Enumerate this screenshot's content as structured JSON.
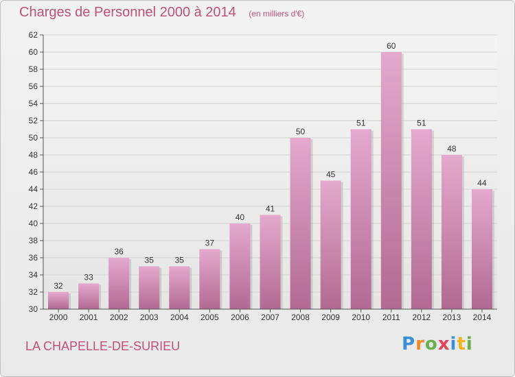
{
  "header": {
    "title": "Charges de Personnel 2000 à 2014",
    "subtitle": "(en milliers d'€)"
  },
  "footer": {
    "commune": "LA CHAPELLE-DE-SURIEU",
    "logo": "Proxiti"
  },
  "colors": {
    "bar_top": "#e4a9cc",
    "bar_bottom": "#b26a91",
    "text_accent": "#c0507a",
    "grid": "#d4d4d4"
  },
  "chart_data": {
    "type": "bar",
    "title": "Charges de Personnel 2000 à 2014",
    "subtitle": "(en milliers d'€)",
    "categories": [
      "2000",
      "2001",
      "2002",
      "2003",
      "2004",
      "2005",
      "2006",
      "2007",
      "2008",
      "2009",
      "2010",
      "2011",
      "2012",
      "2013",
      "2014"
    ],
    "values": [
      32,
      33,
      36,
      35,
      35,
      37,
      40,
      41,
      50,
      45,
      51,
      60,
      51,
      48,
      44
    ],
    "ylim": [
      30,
      62
    ],
    "ytick_step": 2,
    "grid": true,
    "data_labels": true
  }
}
